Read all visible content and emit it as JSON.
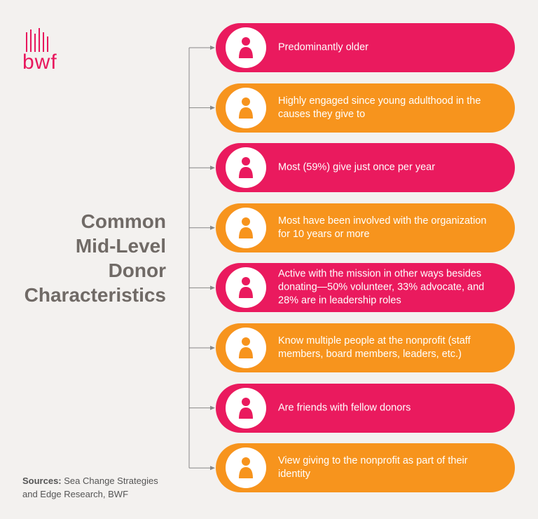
{
  "logo": "bwf",
  "title_lines": [
    "Common",
    "Mid-Level",
    "Donor",
    "Characteristics"
  ],
  "items": [
    {
      "text": "Predominantly older",
      "color": "#ea1a5e"
    },
    {
      "text": "Highly engaged since young adulthood in the causes they give to",
      "color": "#f7941d"
    },
    {
      "text": "Most (59%) give just once per year",
      "color": "#ea1a5e"
    },
    {
      "text": "Most have been involved with the organization for 10 years or more",
      "color": "#f7941d"
    },
    {
      "text": "Active with the mission in other ways besides donating—50% volunteer, 33% advocate, and 28% are in leadership roles",
      "color": "#ea1a5e"
    },
    {
      "text": "Know multiple people at the nonprofit (staff members, board members, leaders, etc.)",
      "color": "#f7941d"
    },
    {
      "text": "Are friends with fellow donors",
      "color": "#ea1a5e"
    },
    {
      "text": "View giving to the nonprofit as part of their identity",
      "color": "#f7941d"
    }
  ],
  "sources": {
    "label": "Sources:",
    "text": "Sea Change Strategies and Edge Research, BWF"
  }
}
